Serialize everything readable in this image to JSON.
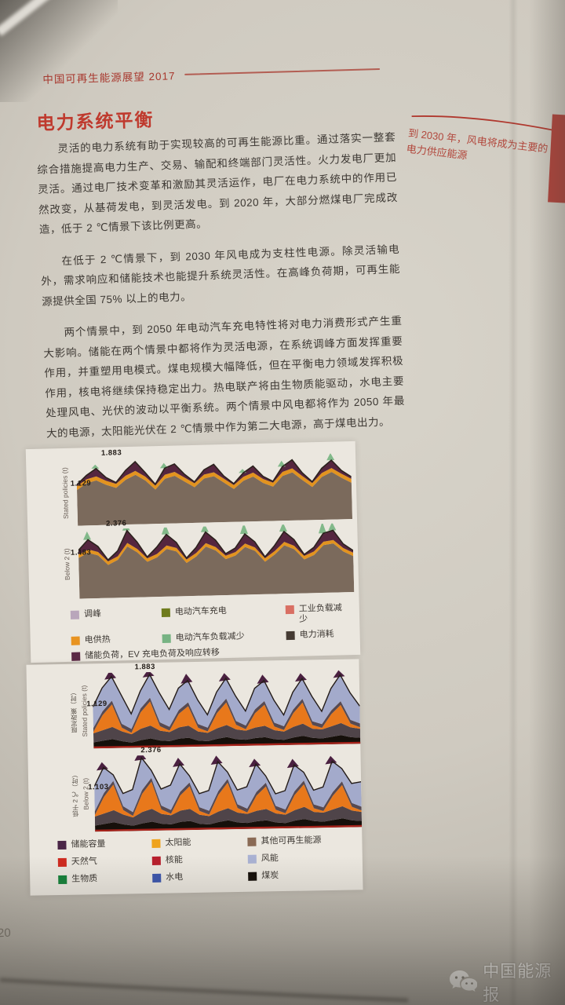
{
  "doc": {
    "header_title": "中国可再生能源展望 2017",
    "section_title": "电力系统平衡",
    "paragraphs": [
      "灵活的电力系统有助于实现较高的可再生能源比重。通过落实一整套综合措施提高电力生产、交易、输配和终端部门灵活性。火力发电厂更加灵活。通过电厂技术变革和激励其灵活运作，电厂在电力系统中的作用已然改变，从基荷发电，到灵活发电。到 2020 年，大部分燃煤电厂完成改造，低于 2 ℃情景下该比例更高。",
      "在低于 2 ℃情景下，到 2030 年风电成为支柱性电源。除灵活输电外，需求响应和储能技术也能提升系统灵活性。在高峰负荷期，可再生能源提供全国 75% 以上的电力。",
      "两个情景中，到 2050 年电动汽车充电特性将对电力消费形式产生重大影响。储能在两个情景中都将作为灵活电源，在系统调峰方面发挥重要作用，并重塑用电模式。煤电规模大幅降低，但在平衡电力领域发挥积极作用，核电将继续保持稳定出力。热电联产将由生物质能驱动，水电主要处理风电、光伏的波动以平衡系统。两个情景中风电都将作为 2050 年最大的电源，太阳能光伏在 2 ℃情景中作为第二大电源，高于煤电出力。"
    ],
    "sidenote": "到 2030 年，风电将成为主要的电力供应能源",
    "page_number": "20",
    "watermark_text": "中国能源报"
  },
  "chart_data": [
    {
      "type": "area",
      "id": "flexibility-weekly-profile",
      "colors": {
        "base": "#7b6a5c",
        "heat": "#e2931f",
        "storage": "#55263f",
        "spike": "#82b98a",
        "outline": "#2b221d"
      },
      "panels": [
        {
          "axis_en": "Stated policies (t)",
          "peak_label": "1.883",
          "start_label": "1.129",
          "outline": [
            0.62,
            0.76,
            0.86,
            0.72,
            0.64,
            0.82,
            0.95,
            0.78,
            0.6,
            0.84,
            0.9,
            0.74,
            0.62,
            0.8,
            0.88,
            0.7,
            0.58,
            0.74,
            0.84,
            0.68,
            0.6,
            0.82,
            0.92,
            0.72,
            0.58,
            0.78,
            0.9,
            0.74,
            0.64
          ],
          "storage": [
            0.02,
            0.06,
            0.12,
            0.05,
            0.02,
            0.08,
            0.14,
            0.06,
            0.02,
            0.1,
            0.12,
            0.05,
            0.02,
            0.07,
            0.12,
            0.04,
            0.02,
            0.06,
            0.1,
            0.04,
            0.02,
            0.08,
            0.13,
            0.05,
            0.02,
            0.07,
            0.12,
            0.05,
            0.03
          ],
          "heat": 0.06,
          "spikes": [
            {
              "i": 2,
              "h": 0.06
            },
            {
              "i": 9,
              "h": 0.08
            },
            {
              "i": 17,
              "h": 0.06
            },
            {
              "i": 21,
              "h": 0.09
            },
            {
              "i": 26,
              "h": 0.11
            }
          ]
        },
        {
          "axis_en": "Below 2 (t)",
          "peak_label": "2.376",
          "start_label": "1.483",
          "outline": [
            0.7,
            0.85,
            0.75,
            0.55,
            0.68,
            0.97,
            0.8,
            0.58,
            0.72,
            0.9,
            0.78,
            0.55,
            0.7,
            0.92,
            0.8,
            0.6,
            0.68,
            0.88,
            0.76,
            0.54,
            0.7,
            0.9,
            0.78,
            0.56,
            0.66,
            0.86,
            0.9,
            0.7,
            0.6
          ],
          "storage": [
            0.06,
            0.14,
            0.08,
            0.02,
            0.08,
            0.18,
            0.1,
            0.02,
            0.1,
            0.16,
            0.08,
            0.02,
            0.08,
            0.16,
            0.1,
            0.03,
            0.06,
            0.14,
            0.08,
            0.02,
            0.08,
            0.15,
            0.09,
            0.02,
            0.06,
            0.12,
            0.14,
            0.06,
            0.03
          ],
          "heat": 0.05,
          "spikes": [
            {
              "i": 1,
              "h": 0.12
            },
            {
              "i": 5,
              "h": 0.1
            },
            {
              "i": 9,
              "h": 0.15
            },
            {
              "i": 13,
              "h": 0.12
            },
            {
              "i": 17,
              "h": 0.16
            },
            {
              "i": 21,
              "h": 0.13
            },
            {
              "i": 25,
              "h": 0.17
            },
            {
              "i": 26,
              "h": 0.12
            }
          ]
        }
      ],
      "legend": [
        {
          "label": "调峰",
          "color": "#b9a6bb"
        },
        {
          "label": "电动汽车充电",
          "color": "#6f7c1d"
        },
        {
          "label": "工业负载减少",
          "color": "#d96f63"
        },
        {
          "label": "电供热",
          "color": "#e89320"
        },
        {
          "label": "电动汽车负载减少",
          "color": "#77b383"
        },
        {
          "label": "电力消耗",
          "color": "#453b33"
        },
        {
          "label": "储能负荷，EV 充电负荷及响应转移",
          "color": "#5b2945"
        }
      ]
    },
    {
      "type": "area",
      "id": "generation-mix-weekly-profile",
      "colors": {
        "coal": "#16100b",
        "other": "#4f4449",
        "solar": "#e8781b",
        "mid": "#574a52",
        "wind": "#a3aacb",
        "caps": "#4a2040",
        "redline": "#a6231b",
        "outline": "#241c18"
      },
      "panels": [
        {
          "axis_zh": "既定政策（时）",
          "axis_en": "Stated policies (t)",
          "peak_label": "1.883",
          "start_label": "1.129",
          "wind_top": [
            0.55,
            0.8,
            0.95,
            0.7,
            0.45,
            0.75,
            0.97,
            0.72,
            0.5,
            0.78,
            0.88,
            0.62,
            0.42,
            0.72,
            0.9,
            0.66,
            0.46,
            0.76,
            0.86,
            0.6,
            0.4,
            0.7,
            0.88,
            0.64,
            0.44,
            0.74,
            0.92,
            0.68,
            0.5
          ],
          "coal": [
            0.08,
            0.1,
            0.12,
            0.09,
            0.07,
            0.1,
            0.12,
            0.09,
            0.08,
            0.11,
            0.12,
            0.08,
            0.07,
            0.1,
            0.12,
            0.09,
            0.08,
            0.1,
            0.11,
            0.08,
            0.07,
            0.1,
            0.12,
            0.09,
            0.08,
            0.1,
            0.12,
            0.09,
            0.08
          ],
          "other_t": [
            0.12,
            0.14,
            0.16,
            0.13,
            0.11,
            0.15,
            0.17,
            0.13,
            0.12,
            0.15,
            0.16,
            0.12,
            0.11,
            0.14,
            0.16,
            0.13,
            0.12,
            0.14,
            0.15,
            0.12,
            0.11,
            0.14,
            0.16,
            0.12,
            0.12,
            0.14,
            0.16,
            0.13,
            0.12
          ],
          "solar_t": [
            0.02,
            0.2,
            0.3,
            0.05,
            0.02,
            0.22,
            0.32,
            0.06,
            0.02,
            0.18,
            0.26,
            0.05,
            0.02,
            0.2,
            0.3,
            0.06,
            0.02,
            0.19,
            0.28,
            0.05,
            0.02,
            0.18,
            0.28,
            0.05,
            0.02,
            0.16,
            0.24,
            0.05,
            0.02
          ],
          "band": 0.05,
          "caps": [
            {
              "i": 2,
              "h": 0.08
            },
            {
              "i": 6,
              "h": 0.06
            },
            {
              "i": 10,
              "h": 0.09
            },
            {
              "i": 14,
              "h": 0.07
            },
            {
              "i": 18,
              "h": 0.08
            },
            {
              "i": 22,
              "h": 0.07
            },
            {
              "i": 26,
              "h": 0.06
            }
          ]
        },
        {
          "axis_zh": "低于 2 ℃（时）",
          "axis_en": "Below 2 (t)",
          "peak_label": "2.376",
          "start_label": "1.103",
          "wind_top": [
            0.6,
            0.85,
            0.75,
            0.5,
            0.55,
            0.97,
            0.8,
            0.55,
            0.6,
            0.88,
            0.72,
            0.48,
            0.52,
            0.9,
            0.76,
            0.52,
            0.56,
            0.86,
            0.7,
            0.46,
            0.5,
            0.84,
            0.74,
            0.5,
            0.54,
            0.88,
            0.78,
            0.58,
            0.6
          ],
          "coal": [
            0.08,
            0.1,
            0.12,
            0.09,
            0.07,
            0.1,
            0.12,
            0.09,
            0.08,
            0.11,
            0.12,
            0.08,
            0.07,
            0.1,
            0.12,
            0.09,
            0.08,
            0.1,
            0.11,
            0.08,
            0.07,
            0.1,
            0.12,
            0.09,
            0.08,
            0.1,
            0.12,
            0.09,
            0.08
          ],
          "other_t": [
            0.12,
            0.14,
            0.16,
            0.13,
            0.11,
            0.15,
            0.17,
            0.13,
            0.12,
            0.15,
            0.16,
            0.12,
            0.11,
            0.14,
            0.16,
            0.13,
            0.12,
            0.14,
            0.15,
            0.12,
            0.11,
            0.14,
            0.16,
            0.12,
            0.12,
            0.14,
            0.16,
            0.13,
            0.12
          ],
          "solar_t": [
            0.02,
            0.22,
            0.34,
            0.06,
            0.02,
            0.24,
            0.36,
            0.06,
            0.02,
            0.2,
            0.3,
            0.05,
            0.02,
            0.22,
            0.34,
            0.06,
            0.02,
            0.2,
            0.3,
            0.05,
            0.02,
            0.2,
            0.3,
            0.05,
            0.02,
            0.18,
            0.28,
            0.05,
            0.02
          ],
          "band": 0.05,
          "caps": [
            {
              "i": 1,
              "h": 0.07
            },
            {
              "i": 5,
              "h": 0.09
            },
            {
              "i": 9,
              "h": 0.08
            },
            {
              "i": 13,
              "h": 0.08
            },
            {
              "i": 17,
              "h": 0.07
            },
            {
              "i": 21,
              "h": 0.08
            },
            {
              "i": 25,
              "h": 0.07
            }
          ]
        }
      ],
      "legend": [
        {
          "label": "储能容量",
          "color": "#4a2547"
        },
        {
          "label": "太阳能",
          "color": "#efa31d"
        },
        {
          "label": "其他可再生能源",
          "color": "#8a6a55"
        },
        {
          "label": "天然气",
          "color": "#cf2b20"
        },
        {
          "label": "核能",
          "color": "#b81f2d"
        },
        {
          "label": "风能",
          "color": "#aab2d3"
        },
        {
          "label": "生物质",
          "color": "#16823b"
        },
        {
          "label": "水电",
          "color": "#3c56ae"
        },
        {
          "label": "煤炭",
          "color": "#150f0a"
        }
      ]
    }
  ]
}
